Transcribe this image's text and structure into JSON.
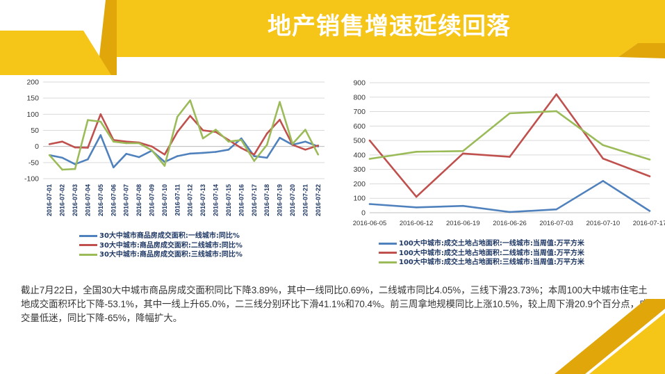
{
  "title": "地产销售增速延续回落",
  "summary": "截止7月22日，全国30大中城市商品房成交面积同比下降3.89%，其中一线同比0.69%，二线城市同比4.05%，三线下滑23.73%；本周100大中城市住宅土地成交面积环比下降-53.1%，其中一线上升65.0%，二三线分别环比下滑41.1%和70.4%。前三周拿地规模同比上涨10.5%，较上周下滑20.9个百分点，成交量低迷，同比下降-65%，降幅扩大。",
  "colors": {
    "banner_yellow": "#F5C518",
    "banner_dark": "#E0A60A",
    "series_blue": "#4F81BD",
    "series_red": "#C0504D",
    "series_green": "#9BBB59",
    "legend_text": "#1F3864"
  },
  "chart_data": [
    {
      "type": "line",
      "categories": [
        "2016-07-01",
        "2016-07-02",
        "2016-07-03",
        "2016-07-04",
        "2016-07-05",
        "2016-07-06",
        "2016-07-07",
        "2016-07-08",
        "2016-07-09",
        "2016-07-10",
        "2016-07-11",
        "2016-07-12",
        "2016-07-13",
        "2016-07-14",
        "2016-07-15",
        "2016-07-16",
        "2016-07-17",
        "2016-07-18",
        "2016-07-19",
        "2016-07-20",
        "2016-07-21",
        "2016-07-22"
      ],
      "ylim": [
        -100,
        200
      ],
      "yticks": [
        -100,
        -50,
        0,
        50,
        100,
        150,
        200
      ],
      "grid": true,
      "legend_position": "bottom",
      "series": [
        {
          "name": "30大中城市商品房成交面积:一线城市:同比%",
          "color": "#4F81BD",
          "values": [
            -27,
            -35,
            -55,
            -40,
            35,
            -65,
            -23,
            -33,
            -13,
            -48,
            -30,
            -22,
            -20,
            -17,
            -10,
            25,
            -30,
            -35,
            27,
            5,
            15,
            0
          ]
        },
        {
          "name": "30大中城市:商品房成交面积:二线城市:同比%",
          "color": "#C0504D",
          "values": [
            7,
            15,
            -3,
            -4,
            100,
            20,
            15,
            12,
            0,
            -25,
            45,
            95,
            50,
            45,
            20,
            -5,
            -25,
            40,
            83,
            5,
            -10,
            3
          ]
        },
        {
          "name": "30大中城市:商品房成交面积:三线城市:同比%",
          "color": "#9BBB59",
          "values": [
            -27,
            -72,
            -70,
            82,
            77,
            15,
            10,
            10,
            -12,
            -60,
            92,
            143,
            25,
            52,
            15,
            20,
            -45,
            5,
            138,
            8,
            52,
            -25
          ]
        }
      ]
    },
    {
      "type": "line",
      "categories": [
        "2016-06-05",
        "2016-06-12",
        "2016-06-19",
        "2016-06-26",
        "2016-07-03",
        "2016-07-10",
        "2016-07-17"
      ],
      "ylim": [
        0,
        900
      ],
      "yticks": [
        0,
        100,
        200,
        300,
        400,
        500,
        600,
        700,
        800,
        900
      ],
      "grid": true,
      "legend_position": "bottom",
      "series": [
        {
          "name": "100大中城市:成交土地占地面积:一线城市:当周值:万平方米",
          "color": "#4F81BD",
          "values": [
            60,
            37,
            47,
            5,
            23,
            220,
            12
          ]
        },
        {
          "name": "100大中城市:成交土地占地面积:二线城市:当周值:万平方米",
          "color": "#C0504D",
          "values": [
            500,
            110,
            410,
            387,
            820,
            375,
            252
          ]
        },
        {
          "name": "100大中城市:成交土地占地面积:三线城市:当周值:万平方米",
          "color": "#9BBB59",
          "values": [
            373,
            422,
            427,
            688,
            703,
            468,
            368
          ]
        }
      ]
    }
  ]
}
